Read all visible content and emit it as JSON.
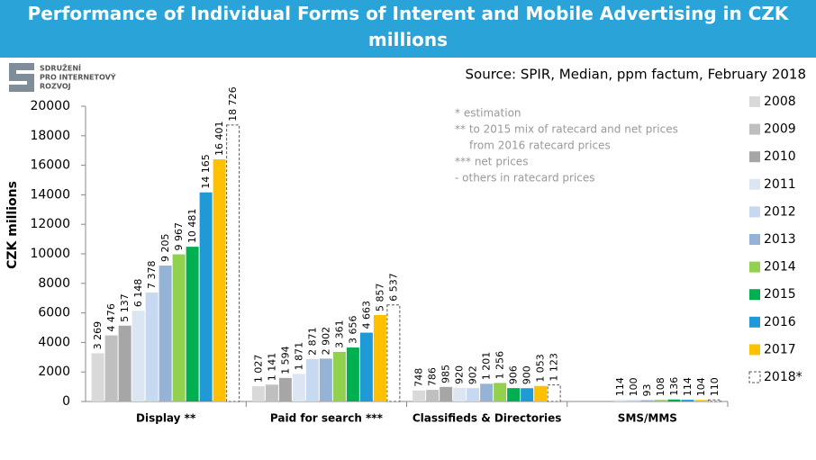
{
  "chart_data": {
    "type": "bar",
    "title": "Performance of Individual Forms of Interent and Mobile Advertising in CZK millions",
    "source": "Source: SPIR, Median, ppm factum, February 2018",
    "logo": [
      "SDRUŽENÍ",
      "PRO INTERNETOVÝ",
      "ROZVOJ"
    ],
    "notes": [
      "* estimation",
      "** to 2015  mix of ratecard and net prices",
      "from 2016  ratecard prices",
      "*** net prices",
      "- others in ratecard prices"
    ],
    "y_label": "CZK millions",
    "categories": [
      "Display **",
      "Paid for search ***",
      "Classifieds & Directories",
      "SMS/MMS"
    ],
    "ylim": [
      0,
      20000
    ],
    "yticks": [
      0,
      2000,
      4000,
      6000,
      8000,
      10000,
      12000,
      14000,
      16000,
      18000,
      20000
    ],
    "grid": false,
    "legend": "right",
    "series": [
      {
        "name": "2008",
        "color": "#d9d9d9",
        "values": [
          3269,
          1027,
          748,
          null
        ],
        "value_labels": [
          "3 269",
          "1 027",
          "748",
          null
        ]
      },
      {
        "name": "2009",
        "color": "#bfbfbf",
        "values": [
          4476,
          1141,
          786,
          null
        ],
        "value_labels": [
          "4 476",
          "1 141",
          "786",
          null
        ]
      },
      {
        "name": "2010",
        "color": "#a6a6a6",
        "values": [
          5137,
          1594,
          985,
          null
        ],
        "value_labels": [
          "5 137",
          "1 594",
          "985",
          null
        ]
      },
      {
        "name": "2011",
        "color": "#dce6f2",
        "values": [
          6148,
          1871,
          920,
          114
        ],
        "value_labels": [
          "6 148",
          "1 871",
          "920",
          "114"
        ]
      },
      {
        "name": "2012",
        "color": "#c6d9f1",
        "values": [
          7378,
          2871,
          902,
          100
        ],
        "value_labels": [
          "7 378",
          "2 871",
          "902",
          "100"
        ]
      },
      {
        "name": "2013",
        "color": "#95b3d7",
        "values": [
          9205,
          2902,
          1201,
          93
        ],
        "value_labels": [
          "9 205",
          "2 902",
          "1 201",
          "93"
        ]
      },
      {
        "name": "2014",
        "color": "#92d050",
        "values": [
          9967,
          3361,
          1256,
          108
        ],
        "value_labels": [
          "9 967",
          "3 361",
          "1 256",
          "108"
        ]
      },
      {
        "name": "2015",
        "color": "#00b050",
        "values": [
          10481,
          3656,
          906,
          136
        ],
        "value_labels": [
          "10 481",
          "3 656",
          "906",
          "136"
        ]
      },
      {
        "name": "2016",
        "color": "#1f9ad6",
        "values": [
          14165,
          4663,
          900,
          114
        ],
        "value_labels": [
          "14 165",
          "4 663",
          "900",
          "114"
        ]
      },
      {
        "name": "2017",
        "color": "#ffc000",
        "values": [
          16401,
          5857,
          1053,
          104
        ],
        "value_labels": [
          "16 401",
          "5 857",
          "1 053",
          "104"
        ]
      },
      {
        "name": "2018*",
        "color": "#ffffff",
        "line_style": "dashed",
        "values": [
          18726,
          6537,
          1123,
          110
        ],
        "value_labels": [
          "18 726",
          "6 537",
          "1 123",
          "110"
        ]
      }
    ]
  }
}
